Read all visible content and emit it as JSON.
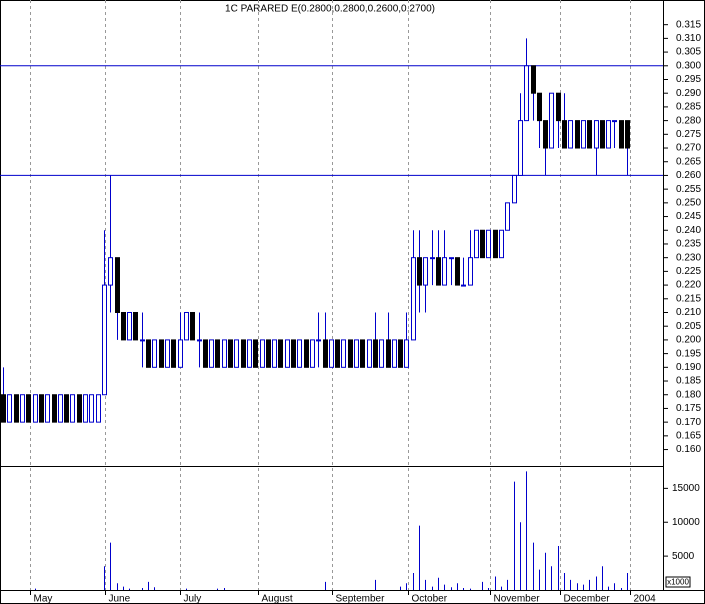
{
  "chart_data": {
    "type": "candlestick",
    "title": "1C PARARED E(0.2800,0.2800,0.2600,0.2700)",
    "open": [
      0.18,
      0.17,
      0.18,
      0.17,
      0.18,
      0.17,
      0.18,
      0.17,
      0.18,
      0.17,
      0.18,
      0.17,
      0.18,
      0.17,
      0.17,
      0.17,
      0.18,
      0.22,
      0.23,
      0.21,
      0.2,
      0.21,
      0.2,
      0.2,
      0.19,
      0.2,
      0.19,
      0.2,
      0.19,
      0.2,
      0.21,
      0.2,
      0.2,
      0.19,
      0.2,
      0.19,
      0.2,
      0.19,
      0.2,
      0.19,
      0.2,
      0.19,
      0.2,
      0.19,
      0.2,
      0.19,
      0.2,
      0.19,
      0.2,
      0.19,
      0.2,
      0.2,
      0.19,
      0.2,
      0.19,
      0.2,
      0.19,
      0.2,
      0.19,
      0.2,
      0.19,
      0.2,
      0.19,
      0.2,
      0.19,
      0.2,
      0.23,
      0.22,
      0.23,
      0.23,
      0.22,
      0.23,
      0.23,
      0.22,
      0.22,
      0.23,
      0.24,
      0.23,
      0.24,
      0.23,
      0.24,
      0.25,
      0.26,
      0.28,
      0.3,
      0.29,
      0.28,
      0.27,
      0.29,
      0.28,
      0.27,
      0.28,
      0.27,
      0.28,
      0.27,
      0.28,
      0.27,
      0.28,
      0.28,
      0.28
    ],
    "high": [
      0.19,
      0.18,
      0.18,
      0.18,
      0.18,
      0.18,
      0.18,
      0.18,
      0.18,
      0.18,
      0.18,
      0.18,
      0.18,
      0.18,
      0.18,
      0.18,
      0.24,
      0.26,
      0.23,
      0.21,
      0.21,
      0.21,
      0.21,
      0.2,
      0.2,
      0.2,
      0.2,
      0.2,
      0.21,
      0.21,
      0.21,
      0.21,
      0.2,
      0.2,
      0.2,
      0.2,
      0.2,
      0.2,
      0.2,
      0.2,
      0.2,
      0.2,
      0.2,
      0.2,
      0.2,
      0.2,
      0.2,
      0.2,
      0.2,
      0.2,
      0.21,
      0.21,
      0.2,
      0.2,
      0.2,
      0.2,
      0.2,
      0.2,
      0.2,
      0.21,
      0.2,
      0.21,
      0.2,
      0.2,
      0.21,
      0.24,
      0.24,
      0.23,
      0.24,
      0.24,
      0.24,
      0.23,
      0.23,
      0.23,
      0.24,
      0.24,
      0.24,
      0.24,
      0.24,
      0.24,
      0.25,
      0.26,
      0.29,
      0.31,
      0.3,
      0.29,
      0.28,
      0.29,
      0.29,
      0.29,
      0.28,
      0.28,
      0.28,
      0.28,
      0.28,
      0.28,
      0.28,
      0.28,
      0.28,
      0.28
    ],
    "low": [
      0.17,
      0.17,
      0.17,
      0.17,
      0.17,
      0.17,
      0.17,
      0.17,
      0.17,
      0.17,
      0.17,
      0.17,
      0.17,
      0.17,
      0.17,
      0.17,
      0.18,
      0.21,
      0.2,
      0.2,
      0.2,
      0.2,
      0.19,
      0.19,
      0.19,
      0.19,
      0.19,
      0.19,
      0.19,
      0.2,
      0.2,
      0.19,
      0.19,
      0.19,
      0.19,
      0.19,
      0.19,
      0.19,
      0.19,
      0.19,
      0.19,
      0.19,
      0.19,
      0.19,
      0.19,
      0.19,
      0.19,
      0.19,
      0.19,
      0.19,
      0.19,
      0.19,
      0.19,
      0.19,
      0.19,
      0.19,
      0.19,
      0.19,
      0.19,
      0.19,
      0.19,
      0.19,
      0.19,
      0.19,
      0.19,
      0.2,
      0.21,
      0.21,
      0.22,
      0.22,
      0.22,
      0.22,
      0.22,
      0.22,
      0.22,
      0.23,
      0.23,
      0.23,
      0.23,
      0.23,
      0.24,
      0.25,
      0.26,
      0.28,
      0.28,
      0.27,
      0.26,
      0.27,
      0.27,
      0.27,
      0.27,
      0.27,
      0.27,
      0.27,
      0.26,
      0.27,
      0.27,
      0.27,
      0.27,
      0.26
    ],
    "close": [
      0.17,
      0.18,
      0.17,
      0.18,
      0.17,
      0.18,
      0.17,
      0.18,
      0.17,
      0.18,
      0.17,
      0.18,
      0.17,
      0.18,
      0.18,
      0.18,
      0.22,
      0.23,
      0.21,
      0.2,
      0.21,
      0.2,
      0.2,
      0.19,
      0.2,
      0.19,
      0.2,
      0.19,
      0.2,
      0.21,
      0.2,
      0.2,
      0.19,
      0.2,
      0.19,
      0.2,
      0.19,
      0.2,
      0.19,
      0.2,
      0.19,
      0.2,
      0.19,
      0.2,
      0.19,
      0.2,
      0.19,
      0.2,
      0.19,
      0.2,
      0.2,
      0.19,
      0.2,
      0.19,
      0.2,
      0.19,
      0.2,
      0.19,
      0.2,
      0.19,
      0.2,
      0.19,
      0.2,
      0.19,
      0.2,
      0.23,
      0.22,
      0.23,
      0.23,
      0.22,
      0.23,
      0.23,
      0.22,
      0.22,
      0.23,
      0.24,
      0.23,
      0.24,
      0.23,
      0.24,
      0.25,
      0.26,
      0.28,
      0.3,
      0.29,
      0.28,
      0.27,
      0.29,
      0.28,
      0.27,
      0.28,
      0.27,
      0.28,
      0.27,
      0.28,
      0.27,
      0.28,
      0.28,
      0.27,
      0.27
    ],
    "volume": [
      0,
      0,
      0,
      0,
      0,
      200,
      0,
      0,
      0,
      0,
      0,
      0,
      0,
      0,
      0,
      0,
      3500,
      7000,
      1000,
      500,
      200,
      0,
      300,
      1200,
      400,
      0,
      0,
      0,
      0,
      200,
      0,
      0,
      0,
      0,
      200,
      300,
      0,
      0,
      0,
      0,
      0,
      0,
      0,
      0,
      0,
      0,
      0,
      0,
      0,
      0,
      0,
      1200,
      0,
      0,
      0,
      0,
      0,
      0,
      0,
      1500,
      0,
      0,
      0,
      500,
      1000,
      2500,
      9500,
      1500,
      500,
      1800,
      800,
      400,
      1000,
      300,
      200,
      0,
      1200,
      300,
      2000,
      500,
      1500,
      16000,
      10000,
      17500,
      7000,
      3000,
      5500,
      3500,
      6500,
      2500,
      1500,
      1000,
      800,
      1500,
      2000,
      3500,
      500,
      1000,
      300,
      2500
    ],
    "up_color": "#0000cc",
    "down_color": "#000000",
    "volume_color": "#0000cc",
    "xlim": [
      -0.5,
      104.7
    ],
    "xticks": [
      {
        "value": 4.3,
        "label": "May"
      },
      {
        "value": 16.2,
        "label": "June"
      },
      {
        "value": 28.1,
        "label": "July"
      },
      {
        "value": 40.5,
        "label": "August"
      },
      {
        "value": 52.2,
        "label": "September"
      },
      {
        "value": 64.3,
        "label": "October"
      },
      {
        "value": 77.3,
        "label": "November"
      },
      {
        "value": 88.4,
        "label": "December"
      },
      {
        "value": 99.5,
        "label": "2004"
      }
    ],
    "ylim": [
      0.154,
      0.324
    ],
    "yticks": [
      {
        "value": 0.16,
        "label": "0.160"
      },
      {
        "value": 0.165,
        "label": "0.165"
      },
      {
        "value": 0.17,
        "label": "0.170"
      },
      {
        "value": 0.175,
        "label": "0.175"
      },
      {
        "value": 0.18,
        "label": "0.180"
      },
      {
        "value": 0.185,
        "label": "0.185"
      },
      {
        "value": 0.19,
        "label": "0.190"
      },
      {
        "value": 0.195,
        "label": "0.195"
      },
      {
        "value": 0.2,
        "label": "0.200"
      },
      {
        "value": 0.205,
        "label": "0.205"
      },
      {
        "value": 0.21,
        "label": "0.210"
      },
      {
        "value": 0.215,
        "label": "0.215"
      },
      {
        "value": 0.22,
        "label": "0.220"
      },
      {
        "value": 0.225,
        "label": "0.225"
      },
      {
        "value": 0.23,
        "label": "0.230"
      },
      {
        "value": 0.235,
        "label": "0.235"
      },
      {
        "value": 0.24,
        "label": "0.240"
      },
      {
        "value": 0.245,
        "label": "0.245"
      },
      {
        "value": 0.25,
        "label": "0.250"
      },
      {
        "value": 0.255,
        "label": "0.255"
      },
      {
        "value": 0.26,
        "label": "0.260"
      },
      {
        "value": 0.265,
        "label": "0.265"
      },
      {
        "value": 0.27,
        "label": "0.270"
      },
      {
        "value": 0.275,
        "label": "0.275"
      },
      {
        "value": 0.28,
        "label": "0.280"
      },
      {
        "value": 0.285,
        "label": "0.285"
      },
      {
        "value": 0.29,
        "label": "0.290"
      },
      {
        "value": 0.295,
        "label": "0.295"
      },
      {
        "value": 0.3,
        "label": "0.300"
      },
      {
        "value": 0.305,
        "label": "0.305"
      },
      {
        "value": 0.31,
        "label": "0.310"
      },
      {
        "value": 0.315,
        "label": "0.315"
      }
    ],
    "hlines": [
      0.3,
      0.26
    ],
    "hline_color": "#0000cc",
    "volume_ylim": [
      0,
      18300
    ],
    "volume_yticks": [
      5000,
      10000,
      15000
    ],
    "volume_unit_label": "x1000",
    "grid": true
  }
}
